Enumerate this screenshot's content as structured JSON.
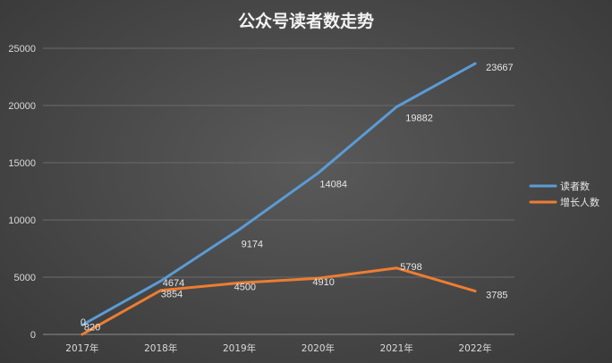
{
  "chart_data": {
    "type": "line",
    "title": "公众号读者数走势",
    "categories": [
      "2017年",
      "2018年",
      "2019年",
      "2020年",
      "2021年",
      "2022年"
    ],
    "series": [
      {
        "name": "读者数",
        "values": [
          820,
          4674,
          9174,
          14084,
          19882,
          23667
        ],
        "color": "#5b9bd5"
      },
      {
        "name": "增长人数",
        "values": [
          0,
          3854,
          4500,
          4910,
          5798,
          3785
        ],
        "color": "#ed7d31"
      }
    ],
    "ylim": [
      0,
      25000
    ],
    "yticks": [
      0,
      5000,
      10000,
      15000,
      20000,
      25000
    ],
    "grid": true,
    "legend": "right",
    "data_labels": true
  }
}
